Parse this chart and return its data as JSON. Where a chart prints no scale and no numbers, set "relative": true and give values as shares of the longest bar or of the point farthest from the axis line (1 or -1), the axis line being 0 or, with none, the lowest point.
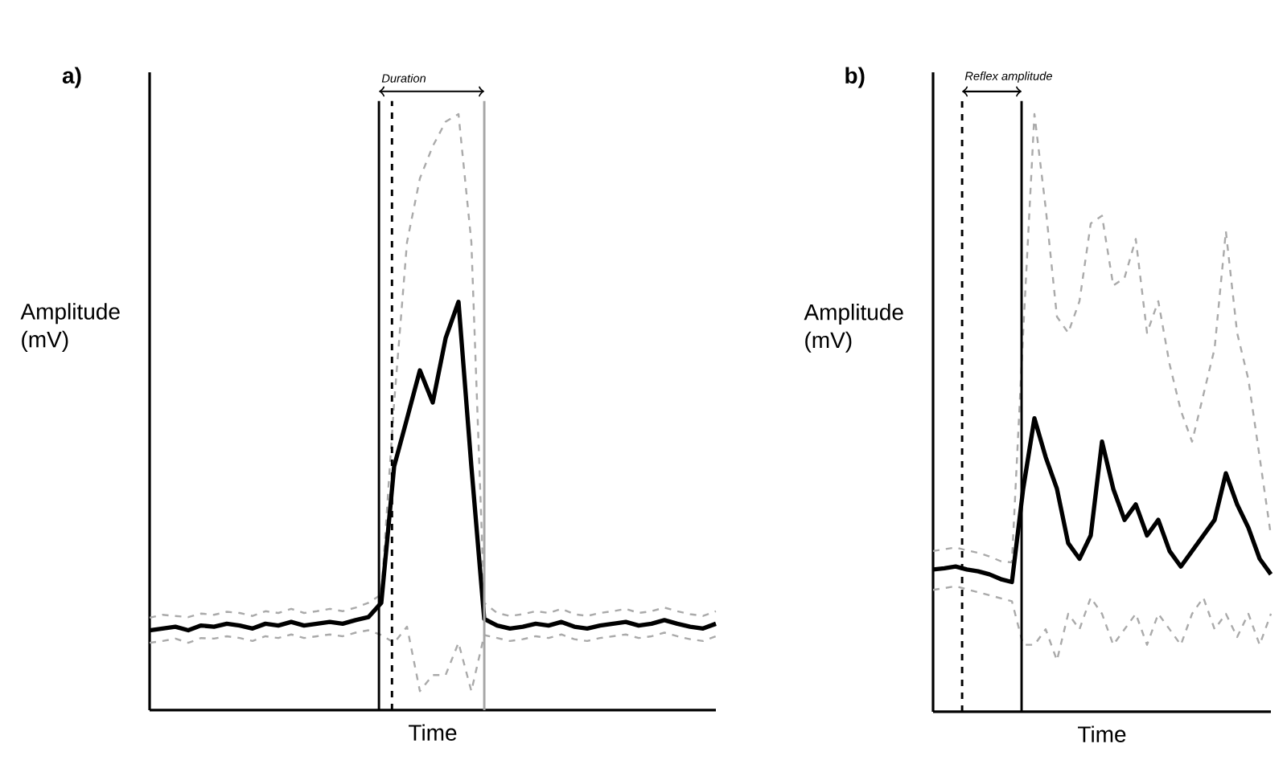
{
  "chart_data": [
    {
      "type": "line",
      "title": "a)",
      "xlabel": "Time",
      "ylabel": "Amplitude (mV)",
      "relative": true,
      "categories": [
        null,
        null,
        null,
        null,
        null,
        null,
        null,
        null,
        null,
        null,
        null,
        null,
        null,
        null,
        null,
        null,
        null,
        null,
        null,
        null,
        null,
        null,
        null,
        null,
        null,
        null,
        null,
        null,
        null,
        null,
        null,
        null,
        null,
        null,
        null,
        null,
        null,
        null,
        null,
        null,
        null,
        null,
        null,
        null,
        null
      ],
      "series": [
        {
          "color": "#aaaaaa",
          "line_style": "dashed",
          "values": [
            0.155,
            0.16,
            0.158,
            0.156,
            0.162,
            0.16,
            0.165,
            0.163,
            0.158,
            0.166,
            0.163,
            0.17,
            0.163,
            0.166,
            0.17,
            0.166,
            0.172,
            0.18,
            0.194,
            0.516,
            0.785,
            0.892,
            0.946,
            0.987,
            1.0,
            0.785,
            0.18,
            0.163,
            0.158,
            0.161,
            0.166,
            0.163,
            0.17,
            0.161,
            0.158,
            0.163,
            0.166,
            0.17,
            0.163,
            0.166,
            0.172,
            0.166,
            0.161,
            0.158,
            0.166
          ]
        },
        {
          "color": "#aaaaaa",
          "line_style": "dashed",
          "values": [
            0.113,
            0.116,
            0.12,
            0.113,
            0.121,
            0.12,
            0.124,
            0.121,
            0.116,
            0.124,
            0.121,
            0.127,
            0.121,
            0.124,
            0.127,
            0.124,
            0.13,
            0.134,
            0.126,
            0.113,
            0.14,
            0.032,
            0.059,
            0.059,
            0.113,
            0.032,
            0.126,
            0.121,
            0.116,
            0.119,
            0.124,
            0.121,
            0.127,
            0.119,
            0.116,
            0.121,
            0.124,
            0.127,
            0.121,
            0.124,
            0.13,
            0.124,
            0.119,
            0.116,
            0.124
          ]
        },
        {
          "color": "#000000",
          "line_style": "solid",
          "values": [
            0.134,
            0.137,
            0.14,
            0.134,
            0.142,
            0.14,
            0.145,
            0.142,
            0.137,
            0.145,
            0.142,
            0.148,
            0.142,
            0.145,
            0.148,
            0.145,
            0.151,
            0.156,
            0.18,
            0.409,
            0.489,
            0.57,
            0.516,
            0.624,
            0.685,
            0.409,
            0.153,
            0.142,
            0.137,
            0.14,
            0.145,
            0.142,
            0.148,
            0.14,
            0.137,
            0.142,
            0.145,
            0.148,
            0.142,
            0.145,
            0.151,
            0.145,
            0.14,
            0.137,
            0.145
          ]
        }
      ],
      "annotations": [
        "Duration"
      ]
    },
    {
      "type": "line",
      "title": "b)",
      "xlabel": "Time",
      "ylabel": "Amplitude (mV)",
      "relative": true,
      "categories": [
        null,
        null,
        null,
        null,
        null,
        null,
        null,
        null,
        null,
        null,
        null,
        null,
        null,
        null,
        null,
        null,
        null,
        null,
        null,
        null,
        null,
        null,
        null,
        null,
        null,
        null,
        null,
        null,
        null,
        null,
        null
      ],
      "series": [
        {
          "color": "#aaaaaa",
          "line_style": "dashed",
          "values": [
            0.269,
            0.272,
            0.275,
            0.27,
            0.266,
            0.26,
            0.252,
            0.25,
            0.634,
            1.0,
            0.843,
            0.661,
            0.634,
            0.687,
            0.817,
            0.83,
            0.713,
            0.726,
            0.791,
            0.634,
            0.687,
            0.582,
            0.504,
            0.452,
            0.53,
            0.608,
            0.804,
            0.634,
            0.556,
            0.426,
            0.295
          ]
        },
        {
          "color": "#aaaaaa",
          "line_style": "dashed",
          "values": [
            0.204,
            0.207,
            0.21,
            0.205,
            0.2,
            0.195,
            0.19,
            0.185,
            0.112,
            0.112,
            0.138,
            0.086,
            0.164,
            0.138,
            0.191,
            0.164,
            0.112,
            0.138,
            0.164,
            0.112,
            0.164,
            0.138,
            0.112,
            0.164,
            0.191,
            0.138,
            0.164,
            0.125,
            0.164,
            0.112,
            0.164
          ]
        },
        {
          "color": "#000000",
          "line_style": "solid",
          "values": [
            0.238,
            0.24,
            0.243,
            0.238,
            0.235,
            0.23,
            0.222,
            0.217,
            0.373,
            0.491,
            0.426,
            0.373,
            0.282,
            0.256,
            0.295,
            0.452,
            0.373,
            0.321,
            0.347,
            0.295,
            0.321,
            0.269,
            0.243,
            0.269,
            0.295,
            0.321,
            0.399,
            0.347,
            0.308,
            0.256,
            0.23
          ]
        }
      ],
      "annotations": [
        "Reflex amplitude"
      ]
    }
  ]
}
